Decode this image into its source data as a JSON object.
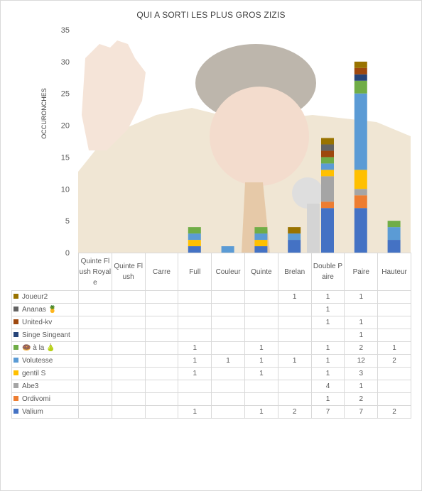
{
  "chart_data": {
    "type": "bar",
    "stacked": true,
    "title": "QUI A SORTI LES PLUS GROS ZIZIS",
    "ylabel": "OCCURONCHES",
    "ylim": [
      0,
      35
    ],
    "yticks": [
      0,
      5,
      10,
      15,
      20,
      25,
      30,
      35
    ],
    "grid": false,
    "legend": "data-table",
    "categories": [
      "Quinte Flush Royale",
      "Quinte Flush",
      "Carre",
      "Full",
      "Couleur",
      "Quinte",
      "Brelan",
      "Double Paire",
      "Paire",
      "Hauteur"
    ],
    "series": [
      {
        "name": "Valium",
        "color": "#4472c4",
        "values": [
          null,
          null,
          null,
          1,
          null,
          1,
          2,
          7,
          7,
          2
        ]
      },
      {
        "name": "Ordivomi",
        "color": "#ed7d31",
        "values": [
          null,
          null,
          null,
          null,
          null,
          null,
          null,
          1,
          2,
          null
        ]
      },
      {
        "name": "Abe3",
        "color": "#a5a5a5",
        "values": [
          null,
          null,
          null,
          null,
          null,
          null,
          null,
          4,
          1,
          null
        ]
      },
      {
        "name": "gentil S",
        "color": "#ffc000",
        "values": [
          null,
          null,
          null,
          1,
          null,
          1,
          null,
          1,
          3,
          null
        ]
      },
      {
        "name": "Volutesse",
        "color": "#5b9bd5",
        "values": [
          null,
          null,
          null,
          1,
          1,
          1,
          1,
          1,
          12,
          2
        ]
      },
      {
        "name": "🍩 à la 🍐",
        "color": "#70ad47",
        "values": [
          null,
          null,
          null,
          1,
          null,
          1,
          null,
          1,
          2,
          1
        ]
      },
      {
        "name": "Singe Singeant",
        "color": "#264478",
        "values": [
          null,
          null,
          null,
          null,
          null,
          null,
          null,
          null,
          1,
          null
        ]
      },
      {
        "name": "United-kv",
        "color": "#9e480e",
        "values": [
          null,
          null,
          null,
          null,
          null,
          null,
          null,
          1,
          1,
          null
        ]
      },
      {
        "name": "Ananas 🍍",
        "color": "#636363",
        "values": [
          null,
          null,
          null,
          null,
          null,
          null,
          null,
          1,
          null,
          null
        ]
      },
      {
        "name": "Joueur2",
        "color": "#997300",
        "values": [
          null,
          null,
          null,
          null,
          null,
          null,
          1,
          1,
          1,
          null
        ]
      }
    ]
  }
}
